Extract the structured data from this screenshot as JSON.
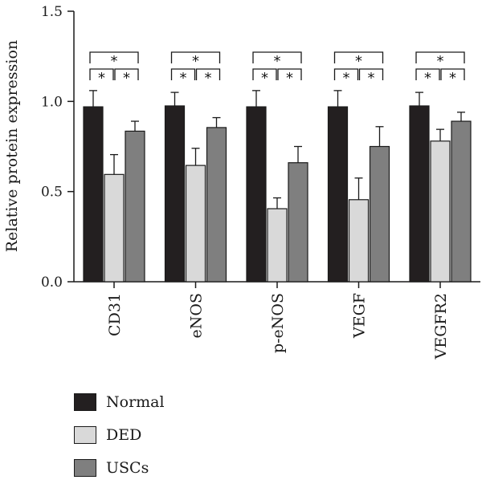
{
  "chart_data": {
    "type": "bar",
    "ylabel": "Relative protein expression",
    "ylim": [
      0,
      1.5
    ],
    "yticks": [
      "0.0",
      "0.5",
      "1.0",
      "1.5"
    ],
    "categories": [
      "CD31",
      "eNOS",
      "p-eNOS",
      "VEGF",
      "VEGFR2"
    ],
    "series": [
      {
        "name": "Normal",
        "color": "#231f20",
        "values": [
          0.97,
          0.975,
          0.97,
          0.97,
          0.975
        ],
        "errors": [
          0.09,
          0.075,
          0.09,
          0.09,
          0.075
        ]
      },
      {
        "name": "DED",
        "color": "#d9d9d9",
        "values": [
          0.595,
          0.645,
          0.405,
          0.455,
          0.78
        ],
        "errors": [
          0.11,
          0.095,
          0.06,
          0.12,
          0.065
        ]
      },
      {
        "name": "USCs",
        "color": "#7f7f7f",
        "values": [
          0.835,
          0.855,
          0.66,
          0.75,
          0.89
        ],
        "errors": [
          0.055,
          0.055,
          0.09,
          0.11,
          0.05
        ]
      }
    ],
    "significance_marker": "*",
    "legend_position": "bottom-left"
  }
}
